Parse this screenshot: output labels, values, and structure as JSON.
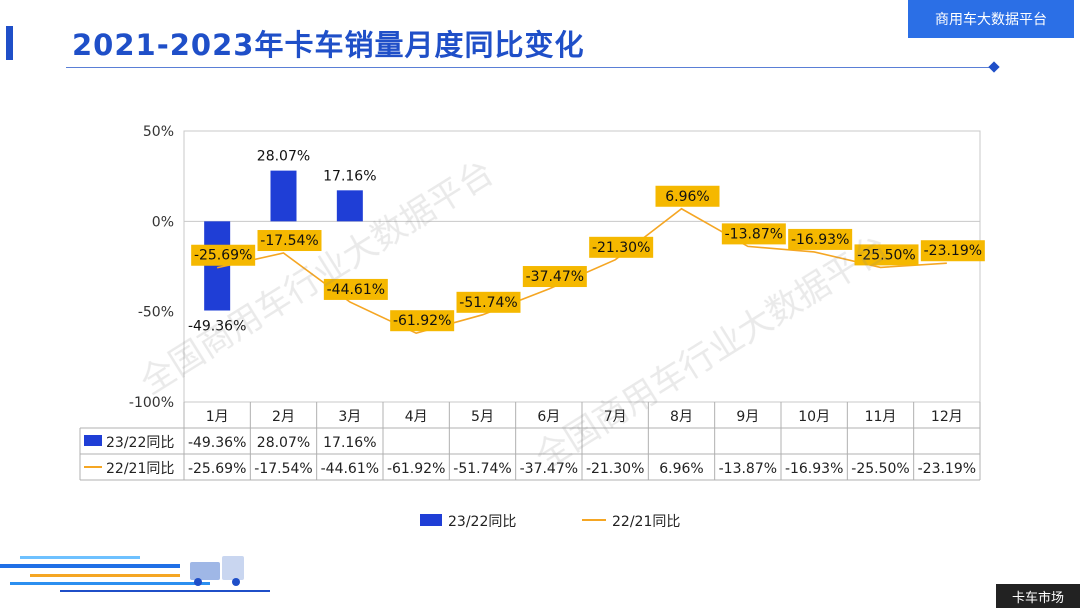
{
  "header": {
    "title": "2021-2023年卡车销量月度同比变化",
    "brand": "商用车大数据平台"
  },
  "footer": {
    "badge": "卡车市场"
  },
  "watermarks": [
    "全国商用车行业大数据平台",
    "全国商用车行业大数据平台"
  ],
  "colors": {
    "bar": "#1f3ed6",
    "line": "#f5a623",
    "label_bg": "#f5b800",
    "title": "#1f4fc8"
  },
  "chart_data": {
    "type": "bar+line",
    "categories": [
      "1月",
      "2月",
      "3月",
      "4月",
      "5月",
      "6月",
      "7月",
      "8月",
      "9月",
      "10月",
      "11月",
      "12月"
    ],
    "ylim": [
      -100,
      50
    ],
    "yticks": [
      50,
      0,
      -50,
      -100
    ],
    "ytick_labels": [
      "50%",
      "0%",
      "-50%",
      "-100%"
    ],
    "series": [
      {
        "name": "23/22同比",
        "type": "bar",
        "values": [
          -49.36,
          28.07,
          17.16,
          null,
          null,
          null,
          null,
          null,
          null,
          null,
          null,
          null
        ],
        "labels": [
          "-49.36%",
          "28.07%",
          "17.16%",
          "",
          "",
          "",
          "",
          "",
          "",
          "",
          "",
          ""
        ]
      },
      {
        "name": "22/21同比",
        "type": "line",
        "values": [
          -25.69,
          -17.54,
          -44.61,
          -61.92,
          -51.74,
          -37.47,
          -21.3,
          6.96,
          -13.87,
          -16.93,
          -25.5,
          -23.19
        ],
        "labels": [
          "-25.69%",
          "-17.54%",
          "-44.61%",
          "-61.92%",
          "-51.74%",
          "-37.47%",
          "-21.30%",
          "6.96%",
          "-13.87%",
          "-16.93%",
          "-25.50%",
          "-23.19%"
        ]
      }
    ],
    "legend": [
      "23/22同比",
      "22/21同比"
    ]
  }
}
